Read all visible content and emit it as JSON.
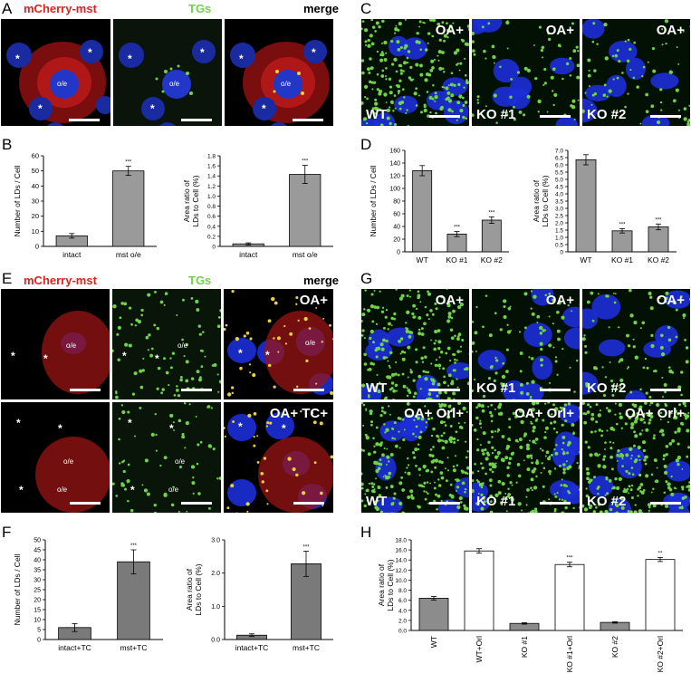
{
  "panel_labels": {
    "A": "A",
    "B": "B",
    "C": "C",
    "D": "D",
    "E": "E",
    "F": "F",
    "G": "G",
    "H": "H"
  },
  "headers": {
    "mcherry": "mCherry-mst",
    "tgs": "TGs",
    "merge": "merge"
  },
  "colors": {
    "red": "#e0201e",
    "green": "#6fd34a",
    "nucleus": "#1c2fd8",
    "bar_gray": "#9a9a9a",
    "bar_dark": "#7a7a7a"
  },
  "markers": {
    "star": "*",
    "oe": "o/e"
  },
  "panel_c_tags": [
    "OA+",
    "OA+",
    "OA+"
  ],
  "panel_c_bottom": [
    "WT",
    "KO #1",
    "KO #2"
  ],
  "panel_e_tags": {
    "top": "OA+",
    "bottom": "OA+ TC+"
  },
  "panel_g_top_tags": [
    "OA+",
    "OA+",
    "OA+"
  ],
  "panel_g_bottom_tags": [
    "OA+ Orl+",
    "OA+ Orl+",
    "OA+ Orl+"
  ],
  "panel_g_labels": [
    "WT",
    "KO #1",
    "KO #2"
  ],
  "chart_data": [
    {
      "id": "B1",
      "type": "bar",
      "categories": [
        "intact",
        "mst o/e"
      ],
      "values": [
        7,
        50
      ],
      "errors": [
        1.5,
        3
      ],
      "ylabel": "Number of LDs / Cell",
      "ylim": [
        0,
        60
      ],
      "yticks": [
        "0",
        "10",
        "20",
        "30",
        "40",
        "50",
        "60"
      ],
      "sig": [
        "",
        "***"
      ]
    },
    {
      "id": "B2",
      "type": "bar",
      "categories": [
        "intact",
        "mst o/e"
      ],
      "values": [
        0.05,
        1.43
      ],
      "errors": [
        0.02,
        0.18
      ],
      "ylabel": "Area ratio of LDs to Cell (%)",
      "ylim": [
        0,
        1.8
      ],
      "yticks": [
        "0",
        "0.2",
        "0.4",
        "0.6",
        "0.8",
        "1.0",
        "1.2",
        "1.4",
        "1.6",
        "1.8"
      ],
      "sig": [
        "",
        "***"
      ]
    },
    {
      "id": "D1",
      "type": "bar",
      "categories": [
        "WT",
        "KO #1",
        "KO #2"
      ],
      "values": [
        128,
        28,
        50
      ],
      "errors": [
        8,
        4,
        5
      ],
      "ylabel": "Number of LDs / Cell",
      "ylim": [
        0,
        160
      ],
      "yticks": [
        "0",
        "20",
        "40",
        "60",
        "80",
        "100",
        "120",
        "140",
        "160"
      ],
      "sig": [
        "",
        "***",
        "***"
      ]
    },
    {
      "id": "D2",
      "type": "bar",
      "categories": [
        "WT",
        "KO #1",
        "KO #2"
      ],
      "values": [
        6.35,
        1.45,
        1.72
      ],
      "errors": [
        0.35,
        0.15,
        0.2
      ],
      "ylabel": "Area ratio of LDs to Cell (%)",
      "ylim": [
        0,
        7
      ],
      "yticks": [
        "0",
        "0.5",
        "1.0",
        "1.5",
        "2.0",
        "2.5",
        "3.0",
        "3.5",
        "4.0",
        "4.5",
        "5.0",
        "5.5",
        "6.0",
        "6.5",
        "7.0"
      ],
      "sig": [
        "",
        "***",
        "***"
      ]
    },
    {
      "id": "F1",
      "type": "bar",
      "categories": [
        "intact+TC",
        "mst+TC"
      ],
      "values": [
        6,
        39
      ],
      "errors": [
        2,
        6
      ],
      "ylabel": "Number of LDs / Cell",
      "ylim": [
        0,
        50
      ],
      "yticks": [
        "0",
        "5",
        "10",
        "15",
        "20",
        "25",
        "30",
        "35",
        "40",
        "45",
        "50"
      ],
      "sig": [
        "",
        "***"
      ]
    },
    {
      "id": "F2",
      "type": "bar",
      "categories": [
        "intact+TC",
        "mst+TC"
      ],
      "values": [
        0.13,
        2.28
      ],
      "errors": [
        0.04,
        0.38
      ],
      "ylabel": "Area ratio of LDs to Cell (%)",
      "ylim": [
        0,
        3
      ],
      "yticks": [
        "0.0",
        "1.0",
        "2.0",
        "3.0"
      ],
      "sig": [
        "",
        "***"
      ]
    },
    {
      "id": "H",
      "type": "bar",
      "categories": [
        "WT",
        "WT+Orl",
        "KO #1",
        "KO #1+Orl",
        "KO #2",
        "KO #2+Orl"
      ],
      "values": [
        6.4,
        15.8,
        1.4,
        13.1,
        1.6,
        14.1
      ],
      "errors": [
        0.35,
        0.45,
        0.15,
        0.45,
        0.15,
        0.4
      ],
      "ylabel": "Area ratio of LDs to Cell (%)",
      "ylim": [
        0,
        18
      ],
      "yticks": [
        "0.0",
        "2.0",
        "4.0",
        "6.0",
        "8.0",
        "10.0",
        "12.0",
        "14.0",
        "16.0",
        "18.0"
      ],
      "sig": [
        "",
        "",
        "",
        "***",
        "",
        "**"
      ],
      "fills": [
        "gray",
        "white",
        "gray",
        "white",
        "gray",
        "white"
      ]
    }
  ]
}
